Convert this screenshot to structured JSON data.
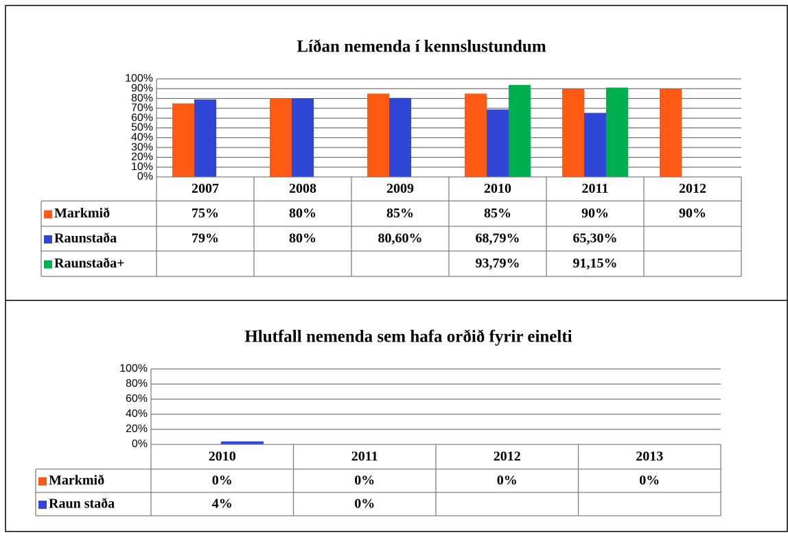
{
  "chart_data": [
    {
      "type": "bar",
      "title": "Líðan nemenda í kennslustundum",
      "categories": [
        "2007",
        "2008",
        "2009",
        "2010",
        "2011",
        "2012"
      ],
      "series": [
        {
          "name": "Markmið",
          "color": "#ff5a14",
          "values": [
            75,
            80,
            85,
            85,
            90,
            90
          ],
          "value_labels": [
            "75%",
            "80%",
            "85%",
            "85%",
            "90%",
            "90%"
          ]
        },
        {
          "name": "Raunstaða",
          "color": "#2f46d6",
          "values": [
            79,
            80,
            80.6,
            68.79,
            65.3,
            null
          ],
          "value_labels": [
            "79%",
            "80%",
            "80,60%",
            "68,79%",
            "65,30%",
            null
          ]
        },
        {
          "name": "Raunstaða+",
          "color": "#00b050",
          "values": [
            null,
            null,
            null,
            93.79,
            91.15,
            null
          ],
          "value_labels": [
            null,
            null,
            null,
            "93,79%",
            "91,15%",
            null
          ]
        }
      ],
      "ylim": [
        0,
        100
      ],
      "yticks": [
        {
          "value": 0,
          "label": "0%"
        },
        {
          "value": 10,
          "label": "10%"
        },
        {
          "value": 20,
          "label": "20%"
        },
        {
          "value": 30,
          "label": "30%"
        },
        {
          "value": 40,
          "label": "40%"
        },
        {
          "value": 50,
          "label": "50%"
        },
        {
          "value": 60,
          "label": "60%"
        },
        {
          "value": 70,
          "label": "70%"
        },
        {
          "value": 80,
          "label": "80%"
        },
        {
          "value": 90,
          "label": "90%"
        },
        {
          "value": 100,
          "label": "100%"
        }
      ],
      "grid": true
    },
    {
      "type": "bar",
      "title": "Hlutfall nemenda sem hafa orðið fyrir einelti",
      "categories": [
        "2010",
        "2011",
        "2012",
        "2013"
      ],
      "series": [
        {
          "name": "Markmið",
          "color": "#ff5a14",
          "values": [
            0,
            0,
            0,
            0
          ],
          "value_labels": [
            "0%",
            "0%",
            "0%",
            "0%"
          ]
        },
        {
          "name": "Raun staða",
          "color": "#2f46d6",
          "values": [
            4,
            0,
            null,
            null
          ],
          "value_labels": [
            "4%",
            "0%",
            null,
            null
          ]
        }
      ],
      "ylim": [
        0,
        100
      ],
      "yticks": [
        {
          "value": 0,
          "label": "0%"
        },
        {
          "value": 20,
          "label": "20%"
        },
        {
          "value": 40,
          "label": "40%"
        },
        {
          "value": 60,
          "label": "60%"
        },
        {
          "value": 80,
          "label": "80%"
        },
        {
          "value": 100,
          "label": "100%"
        }
      ],
      "grid": true
    }
  ]
}
